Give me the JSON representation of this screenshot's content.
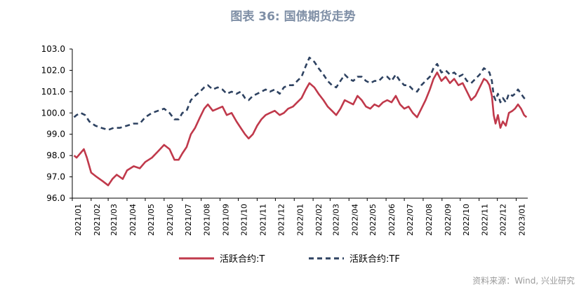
{
  "title": "图表 36: 国债期货走势",
  "source": "资料来源：Wind, 兴业研究",
  "colors": {
    "T": "#c0394b",
    "TF": "#2e4261",
    "axis": "#000000"
  },
  "chart_data": {
    "type": "line",
    "title": "图表 36: 国债期货走势",
    "ylim": [
      96.0,
      103.0
    ],
    "yticks": [
      "103.0",
      "102.0",
      "101.0",
      "100.0",
      "99.0",
      "98.0",
      "97.0",
      "96.0"
    ],
    "xlim": [
      "2021-01-01",
      "2023-01-20"
    ],
    "xticks": [
      "2021/01",
      "2021/02",
      "2021/03",
      "2021/04",
      "2021/05",
      "2021/06",
      "2021/07",
      "2021/08",
      "2021/09",
      "2021/10",
      "2021/11",
      "2021/12",
      "2022/01",
      "2022/02",
      "2022/03",
      "2022/04",
      "2022/05",
      "2022/06",
      "2022/07",
      "2022/08",
      "2022/09",
      "2022/10",
      "2022/11",
      "2022/12",
      "2023/01"
    ],
    "legend": "bottom",
    "grid": false,
    "series": [
      {
        "name": "活跃合约:T",
        "style": "solid",
        "points": [
          [
            "2021-01-04",
            98.0
          ],
          [
            "2021-01-08",
            97.9
          ],
          [
            "2021-01-14",
            98.1
          ],
          [
            "2021-01-20",
            98.3
          ],
          [
            "2021-01-25",
            97.9
          ],
          [
            "2021-02-01",
            97.2
          ],
          [
            "2021-02-10",
            97.0
          ],
          [
            "2021-02-20",
            96.8
          ],
          [
            "2021-03-01",
            96.6
          ],
          [
            "2021-03-08",
            96.9
          ],
          [
            "2021-03-15",
            97.1
          ],
          [
            "2021-03-25",
            96.9
          ],
          [
            "2021-04-01",
            97.3
          ],
          [
            "2021-04-12",
            97.5
          ],
          [
            "2021-04-22",
            97.4
          ],
          [
            "2021-05-01",
            97.7
          ],
          [
            "2021-05-12",
            97.9
          ],
          [
            "2021-05-22",
            98.2
          ],
          [
            "2021-06-01",
            98.5
          ],
          [
            "2021-06-10",
            98.3
          ],
          [
            "2021-06-18",
            97.8
          ],
          [
            "2021-06-25",
            97.8
          ],
          [
            "2021-07-01",
            98.1
          ],
          [
            "2021-07-08",
            98.4
          ],
          [
            "2021-07-15",
            99.0
          ],
          [
            "2021-07-22",
            99.3
          ],
          [
            "2021-07-30",
            99.8
          ],
          [
            "2021-08-06",
            100.2
          ],
          [
            "2021-08-12",
            100.4
          ],
          [
            "2021-08-20",
            100.1
          ],
          [
            "2021-08-28",
            100.2
          ],
          [
            "2021-09-05",
            100.3
          ],
          [
            "2021-09-12",
            99.9
          ],
          [
            "2021-09-20",
            100.0
          ],
          [
            "2021-09-28",
            99.6
          ],
          [
            "2021-10-05",
            99.3
          ],
          [
            "2021-10-12",
            99.0
          ],
          [
            "2021-10-18",
            98.8
          ],
          [
            "2021-10-25",
            99.0
          ],
          [
            "2021-11-01",
            99.4
          ],
          [
            "2021-11-08",
            99.7
          ],
          [
            "2021-11-15",
            99.9
          ],
          [
            "2021-11-22",
            100.0
          ],
          [
            "2021-11-30",
            100.1
          ],
          [
            "2021-12-08",
            99.9
          ],
          [
            "2021-12-15",
            100.0
          ],
          [
            "2021-12-22",
            100.2
          ],
          [
            "2021-12-30",
            100.3
          ],
          [
            "2022-01-06",
            100.5
          ],
          [
            "2022-01-13",
            100.7
          ],
          [
            "2022-01-20",
            101.1
          ],
          [
            "2022-01-26",
            101.4
          ],
          [
            "2022-02-03",
            101.2
          ],
          [
            "2022-02-10",
            100.9
          ],
          [
            "2022-02-18",
            100.6
          ],
          [
            "2022-02-25",
            100.3
          ],
          [
            "2022-03-04",
            100.1
          ],
          [
            "2022-03-11",
            99.9
          ],
          [
            "2022-03-18",
            100.2
          ],
          [
            "2022-03-25",
            100.6
          ],
          [
            "2022-04-01",
            100.5
          ],
          [
            "2022-04-08",
            100.4
          ],
          [
            "2022-04-15",
            100.8
          ],
          [
            "2022-04-22",
            100.6
          ],
          [
            "2022-04-29",
            100.3
          ],
          [
            "2022-05-06",
            100.2
          ],
          [
            "2022-05-13",
            100.4
          ],
          [
            "2022-05-20",
            100.3
          ],
          [
            "2022-05-27",
            100.5
          ],
          [
            "2022-06-03",
            100.6
          ],
          [
            "2022-06-10",
            100.5
          ],
          [
            "2022-06-17",
            100.8
          ],
          [
            "2022-06-24",
            100.4
          ],
          [
            "2022-07-01",
            100.2
          ],
          [
            "2022-07-08",
            100.3
          ],
          [
            "2022-07-15",
            100.0
          ],
          [
            "2022-07-22",
            99.8
          ],
          [
            "2022-07-29",
            100.2
          ],
          [
            "2022-08-05",
            100.6
          ],
          [
            "2022-08-12",
            101.1
          ],
          [
            "2022-08-18",
            101.6
          ],
          [
            "2022-08-24",
            101.9
          ],
          [
            "2022-08-31",
            101.5
          ],
          [
            "2022-09-07",
            101.7
          ],
          [
            "2022-09-14",
            101.4
          ],
          [
            "2022-09-21",
            101.6
          ],
          [
            "2022-09-28",
            101.3
          ],
          [
            "2022-10-05",
            101.4
          ],
          [
            "2022-10-12",
            101.0
          ],
          [
            "2022-10-19",
            100.6
          ],
          [
            "2022-10-26",
            100.8
          ],
          [
            "2022-11-02",
            101.2
          ],
          [
            "2022-11-09",
            101.6
          ],
          [
            "2022-11-14",
            101.5
          ],
          [
            "2022-11-18",
            101.3
          ],
          [
            "2022-11-22",
            100.8
          ],
          [
            "2022-11-25",
            99.9
          ],
          [
            "2022-11-28",
            99.5
          ],
          [
            "2022-12-02",
            99.9
          ],
          [
            "2022-12-06",
            99.3
          ],
          [
            "2022-12-10",
            99.6
          ],
          [
            "2022-12-15",
            99.4
          ],
          [
            "2022-12-20",
            100.0
          ],
          [
            "2022-12-26",
            100.1
          ],
          [
            "2022-12-30",
            100.2
          ],
          [
            "2023-01-04",
            100.4
          ],
          [
            "2023-01-09",
            100.2
          ],
          [
            "2023-01-14",
            99.9
          ],
          [
            "2023-01-18",
            99.8
          ]
        ]
      },
      {
        "name": "活跃合约:TF",
        "style": "dashed",
        "points": [
          [
            "2021-01-04",
            99.8
          ],
          [
            "2021-01-08",
            99.9
          ],
          [
            "2021-01-15",
            100.0
          ],
          [
            "2021-01-22",
            99.9
          ],
          [
            "2021-01-29",
            99.6
          ],
          [
            "2021-02-08",
            99.4
          ],
          [
            "2021-02-18",
            99.3
          ],
          [
            "2021-03-01",
            99.2
          ],
          [
            "2021-03-10",
            99.3
          ],
          [
            "2021-03-20",
            99.3
          ],
          [
            "2021-04-01",
            99.4
          ],
          [
            "2021-04-12",
            99.5
          ],
          [
            "2021-04-22",
            99.5
          ],
          [
            "2021-05-01",
            99.8
          ],
          [
            "2021-05-12",
            100.0
          ],
          [
            "2021-05-22",
            100.1
          ],
          [
            "2021-06-01",
            100.2
          ],
          [
            "2021-06-10",
            100.0
          ],
          [
            "2021-06-18",
            99.7
          ],
          [
            "2021-06-25",
            99.7
          ],
          [
            "2021-07-01",
            100.0
          ],
          [
            "2021-07-08",
            100.1
          ],
          [
            "2021-07-15",
            100.6
          ],
          [
            "2021-07-22",
            100.8
          ],
          [
            "2021-07-30",
            101.0
          ],
          [
            "2021-08-06",
            101.2
          ],
          [
            "2021-08-12",
            101.3
          ],
          [
            "2021-08-20",
            101.1
          ],
          [
            "2021-08-28",
            101.2
          ],
          [
            "2021-09-05",
            101.1
          ],
          [
            "2021-09-12",
            100.9
          ],
          [
            "2021-09-20",
            101.0
          ],
          [
            "2021-09-28",
            100.9
          ],
          [
            "2021-10-05",
            101.0
          ],
          [
            "2021-10-12",
            100.7
          ],
          [
            "2021-10-18",
            100.6
          ],
          [
            "2021-10-25",
            100.8
          ],
          [
            "2021-11-01",
            100.9
          ],
          [
            "2021-11-08",
            101.0
          ],
          [
            "2021-11-15",
            101.1
          ],
          [
            "2021-11-22",
            101.0
          ],
          [
            "2021-11-30",
            101.1
          ],
          [
            "2021-12-08",
            100.9
          ],
          [
            "2021-12-15",
            101.2
          ],
          [
            "2021-12-22",
            101.3
          ],
          [
            "2021-12-30",
            101.3
          ],
          [
            "2022-01-06",
            101.5
          ],
          [
            "2022-01-13",
            101.7
          ],
          [
            "2022-01-20",
            102.2
          ],
          [
            "2022-01-26",
            102.6
          ],
          [
            "2022-02-03",
            102.4
          ],
          [
            "2022-02-10",
            102.1
          ],
          [
            "2022-02-18",
            101.8
          ],
          [
            "2022-02-25",
            101.5
          ],
          [
            "2022-03-04",
            101.3
          ],
          [
            "2022-03-11",
            101.2
          ],
          [
            "2022-03-18",
            101.5
          ],
          [
            "2022-03-25",
            101.8
          ],
          [
            "2022-04-01",
            101.6
          ],
          [
            "2022-04-08",
            101.5
          ],
          [
            "2022-04-15",
            101.7
          ],
          [
            "2022-04-22",
            101.7
          ],
          [
            "2022-04-29",
            101.5
          ],
          [
            "2022-05-06",
            101.4
          ],
          [
            "2022-05-13",
            101.5
          ],
          [
            "2022-05-20",
            101.5
          ],
          [
            "2022-05-27",
            101.7
          ],
          [
            "2022-06-03",
            101.7
          ],
          [
            "2022-06-10",
            101.5
          ],
          [
            "2022-06-17",
            101.8
          ],
          [
            "2022-06-24",
            101.5
          ],
          [
            "2022-07-01",
            101.3
          ],
          [
            "2022-07-08",
            101.3
          ],
          [
            "2022-07-15",
            101.1
          ],
          [
            "2022-07-22",
            101.0
          ],
          [
            "2022-07-29",
            101.3
          ],
          [
            "2022-08-05",
            101.5
          ],
          [
            "2022-08-12",
            101.7
          ],
          [
            "2022-08-18",
            102.1
          ],
          [
            "2022-08-24",
            102.3
          ],
          [
            "2022-08-31",
            101.9
          ],
          [
            "2022-09-07",
            102.0
          ],
          [
            "2022-09-14",
            101.8
          ],
          [
            "2022-09-21",
            101.9
          ],
          [
            "2022-09-28",
            101.7
          ],
          [
            "2022-10-05",
            101.8
          ],
          [
            "2022-10-12",
            101.5
          ],
          [
            "2022-10-19",
            101.4
          ],
          [
            "2022-10-26",
            101.6
          ],
          [
            "2022-11-02",
            101.8
          ],
          [
            "2022-11-09",
            102.1
          ],
          [
            "2022-11-14",
            102.0
          ],
          [
            "2022-11-18",
            101.9
          ],
          [
            "2022-11-22",
            101.5
          ],
          [
            "2022-11-25",
            100.8
          ],
          [
            "2022-11-28",
            100.6
          ],
          [
            "2022-12-02",
            100.9
          ],
          [
            "2022-12-06",
            100.5
          ],
          [
            "2022-12-10",
            100.7
          ],
          [
            "2022-12-15",
            100.5
          ],
          [
            "2022-12-20",
            100.9
          ],
          [
            "2022-12-26",
            100.8
          ],
          [
            "2022-12-30",
            100.9
          ],
          [
            "2023-01-04",
            101.1
          ],
          [
            "2023-01-09",
            100.9
          ],
          [
            "2023-01-14",
            100.7
          ],
          [
            "2023-01-18",
            100.6
          ]
        ]
      }
    ]
  }
}
